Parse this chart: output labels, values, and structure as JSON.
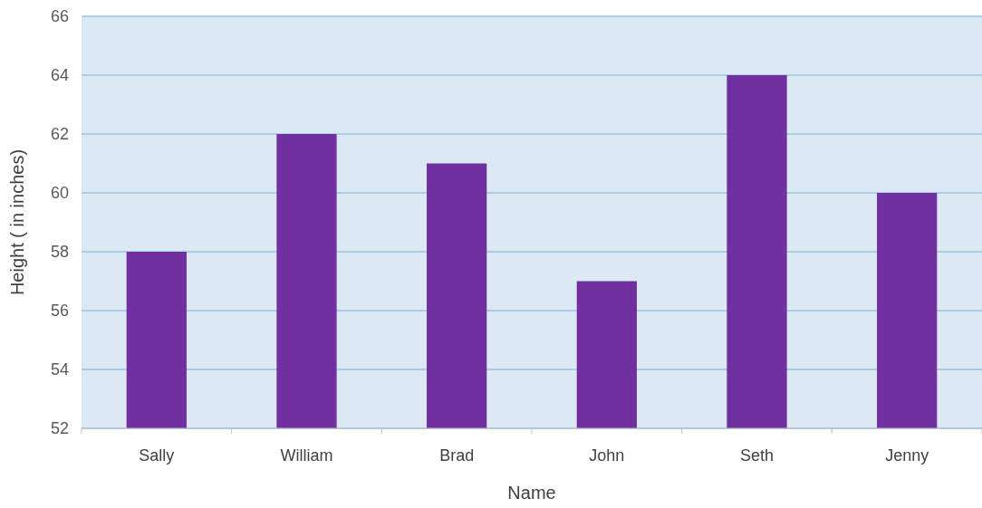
{
  "chart_data": {
    "type": "bar",
    "xlabel": "Name",
    "ylabel": "Height ( in inches)",
    "categories": [
      "Sally",
      "William",
      "Brad",
      "John",
      "Seth",
      "Jenny"
    ],
    "values": [
      58,
      62,
      61,
      57,
      64,
      60
    ],
    "color": "#7030a0",
    "ylim": [
      52,
      66
    ],
    "yticks": [
      52,
      54,
      56,
      58,
      60,
      62,
      64,
      66
    ],
    "grid": "y"
  }
}
